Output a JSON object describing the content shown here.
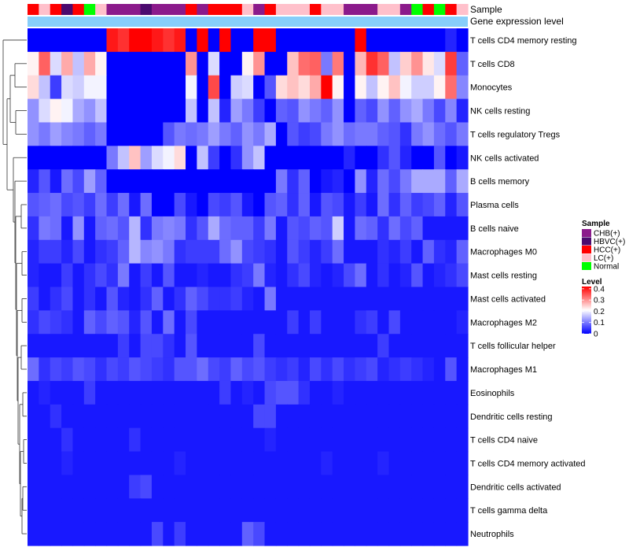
{
  "chart_data": {
    "type": "heatmap",
    "colors": {
      "low": "#0000ff",
      "mid": "#ffffff",
      "high": "#ff0000",
      "expression_bar": "#87cefa",
      "dendrogram": "#333333"
    },
    "annotation_titles": [
      "Sample",
      "Gene expression level"
    ],
    "sample_legend": {
      "title": "Sample",
      "items": [
        {
          "label": "CHB(+)",
          "color": "#8b1a8b"
        },
        {
          "label": "HBVC(+)",
          "color": "#4b0a6e"
        },
        {
          "label": "HCC(+)",
          "color": "#ff0000"
        },
        {
          "label": "LC(+)",
          "color": "#ffc0cb"
        },
        {
          "label": "Normal",
          "color": "#00ff00"
        }
      ]
    },
    "level_legend": {
      "title": "Level",
      "ticks": [
        "0.4",
        "0.3",
        "0.2",
        "0.1",
        "0"
      ],
      "tick_values": [
        0.4,
        0.3,
        0.2,
        0.1,
        0
      ],
      "range": [
        0,
        0.42
      ]
    },
    "sample_types": [
      "HCC(+)",
      "LC(+)",
      "HCC(+)",
      "HBVC(+)",
      "HCC(+)",
      "Normal",
      "LC(+)",
      "CHB(+)",
      "CHB(+)",
      "CHB(+)",
      "HBVC(+)",
      "CHB(+)",
      "CHB(+)",
      "CHB(+)",
      "HCC(+)",
      "CHB(+)",
      "HCC(+)",
      "HCC(+)",
      "HCC(+)",
      "LC(+)",
      "CHB(+)",
      "HCC(+)",
      "LC(+)",
      "LC(+)",
      "LC(+)",
      "HCC(+)",
      "LC(+)",
      "LC(+)",
      "CHB(+)",
      "CHB(+)",
      "CHB(+)",
      "LC(+)",
      "LC(+)",
      "CHB(+)",
      "Normal",
      "HCC(+)",
      "Normal",
      "HCC(+)",
      "LC(+)"
    ],
    "rows": [
      {
        "name": "T cells CD4 memory resting",
        "values": [
          0,
          0,
          0,
          0,
          0,
          0,
          0,
          0.4,
          0.38,
          0.42,
          0.42,
          0.4,
          0.38,
          0.4,
          0,
          0.42,
          0,
          0.42,
          0,
          0,
          0.42,
          0.42,
          0,
          0,
          0,
          0,
          0,
          0,
          0,
          0.42,
          0,
          0,
          0,
          0,
          0,
          0,
          0,
          0.03,
          0
        ]
      },
      {
        "name": "T cells CD8",
        "values": [
          0.22,
          0.34,
          0.18,
          0.28,
          0.16,
          0.28,
          0.22,
          0,
          0,
          0,
          0,
          0,
          0,
          0,
          0.3,
          0,
          0.18,
          0,
          0,
          0.22,
          0.3,
          0,
          0,
          0.26,
          0.33,
          0.34,
          0.1,
          0.32,
          0,
          0.27,
          0.38,
          0.34,
          0.16,
          0.25,
          0.3,
          0.23,
          0.18,
          0.37,
          0.08
        ]
      },
      {
        "name": "Monocytes",
        "values": [
          0.24,
          0.16,
          0.05,
          0.18,
          0.17,
          0.2,
          0.2,
          0,
          0,
          0,
          0,
          0,
          0,
          0,
          0.2,
          0,
          0.36,
          0,
          0.17,
          0.18,
          0,
          0.07,
          0.24,
          0.26,
          0.24,
          0.28,
          0.42,
          0.22,
          0,
          0.22,
          0.16,
          0.22,
          0.26,
          0.2,
          0.17,
          0.17,
          0.22,
          0.33,
          0.11
        ]
      },
      {
        "name": "NK cells resting",
        "values": [
          0.12,
          0.18,
          0.22,
          0.2,
          0.14,
          0.12,
          0.16,
          0,
          0,
          0,
          0,
          0,
          0,
          0,
          0.16,
          0,
          0.16,
          0.03,
          0.13,
          0.1,
          0.05,
          0,
          0.08,
          0.07,
          0.12,
          0.1,
          0.08,
          0.12,
          0,
          0.08,
          0.06,
          0.12,
          0.08,
          0.12,
          0.14,
          0.1,
          0.06,
          0.11,
          0.03
        ]
      },
      {
        "name": "T cells regulatory  Tregs",
        "values": [
          0.12,
          0.1,
          0.13,
          0.11,
          0.1,
          0.08,
          0.1,
          0,
          0,
          0,
          0,
          0,
          0.07,
          0.1,
          0.09,
          0.1,
          0.13,
          0.1,
          0.08,
          0.12,
          0.1,
          0.14,
          0,
          0.07,
          0.05,
          0.06,
          0.1,
          0.12,
          0.09,
          0.1,
          0.1,
          0.08,
          0.07,
          0.04,
          0.1,
          0.12,
          0.09,
          0.07,
          0.1
        ]
      },
      {
        "name": "NK cells activated",
        "values": [
          0,
          0,
          0,
          0,
          0,
          0,
          0,
          0.1,
          0.16,
          0.26,
          0.13,
          0.18,
          0.2,
          0.24,
          0,
          0.16,
          0.05,
          0,
          0.04,
          0.12,
          0.16,
          0,
          0,
          0,
          0,
          0,
          0,
          0,
          0.03,
          0,
          0,
          0.04,
          0.07,
          0.03,
          0,
          0,
          0.07,
          0,
          0.02
        ]
      },
      {
        "name": "B cells memory",
        "values": [
          0.03,
          0.07,
          0.02,
          0.09,
          0.06,
          0.13,
          0.08,
          0,
          0,
          0,
          0,
          0,
          0,
          0,
          0,
          0,
          0,
          0,
          0,
          0,
          0,
          0,
          0.1,
          0.04,
          0.08,
          0,
          0.02,
          0.03,
          0,
          0.12,
          0.03,
          0.09,
          0.06,
          0.1,
          0.14,
          0.14,
          0.14,
          0.08,
          0.14
        ]
      },
      {
        "name": "Plasma cells",
        "values": [
          0.07,
          0.08,
          0.09,
          0.06,
          0.07,
          0.05,
          0.09,
          0.05,
          0.09,
          0.02,
          0.09,
          0,
          0,
          0.06,
          0.02,
          0,
          0.06,
          0.05,
          0.07,
          0.02,
          0,
          0.07,
          0.08,
          0.04,
          0.08,
          0.02,
          0.07,
          0.06,
          0.02,
          0.05,
          0.02,
          0.09,
          0.04,
          0.08,
          0.05,
          0.06,
          0.08,
          0.03,
          0.07
        ]
      },
      {
        "name": "B cells naive",
        "values": [
          0.04,
          0.1,
          0.09,
          0.02,
          0.12,
          0.02,
          0.08,
          0.09,
          0.07,
          0.15,
          0.04,
          0.1,
          0.11,
          0.1,
          0.04,
          0.07,
          0.14,
          0.09,
          0.08,
          0.08,
          0.05,
          0.1,
          0.02,
          0.07,
          0.06,
          0.08,
          0.07,
          0.17,
          0.02,
          0.09,
          0.08,
          0.04,
          0.09,
          0.06,
          0.08,
          0.02,
          0.02,
          0.02,
          0.02
        ]
      },
      {
        "name": "Macrophages M0",
        "values": [
          0.03,
          0.05,
          0.05,
          0.03,
          0.06,
          0.02,
          0.04,
          0.05,
          0.08,
          0.15,
          0.11,
          0.12,
          0.1,
          0.04,
          0.05,
          0.05,
          0.05,
          0.09,
          0.12,
          0.06,
          0.05,
          0.04,
          0.02,
          0.07,
          0.05,
          0.03,
          0.05,
          0.09,
          0.02,
          0.02,
          0.02,
          0.04,
          0.03,
          0.05,
          0.02,
          0.08,
          0.04,
          0.03,
          0.08
        ]
      },
      {
        "name": "Mast cells resting",
        "values": [
          0.03,
          0.02,
          0.02,
          0.05,
          0.02,
          0.04,
          0.06,
          0.04,
          0.1,
          0.02,
          0.05,
          0.02,
          0.07,
          0.02,
          0.02,
          0.03,
          0.02,
          0.02,
          0.04,
          0.05,
          0.1,
          0.03,
          0.02,
          0.04,
          0.06,
          0.03,
          0.02,
          0.03,
          0.06,
          0.09,
          0.02,
          0.04,
          0.02,
          0.03,
          0.07,
          0.02,
          0.03,
          0.04,
          0.06
        ]
      },
      {
        "name": "Mast cells activated",
        "values": [
          0.05,
          0.02,
          0.04,
          0.06,
          0.02,
          0.04,
          0.02,
          0.07,
          0.03,
          0.02,
          0.04,
          0.08,
          0.02,
          0.04,
          0.08,
          0.06,
          0.04,
          0.04,
          0.05,
          0.03,
          0.02,
          0.1,
          0.02,
          0.02,
          0.02,
          0.02,
          0.02,
          0.02,
          0.02,
          0.02,
          0.02,
          0.02,
          0.02,
          0.02,
          0.02,
          0.02,
          0.02,
          0.02,
          0.02
        ]
      },
      {
        "name": "Macrophages M2",
        "values": [
          0.04,
          0.06,
          0.05,
          0.04,
          0.02,
          0.08,
          0.06,
          0.08,
          0.07,
          0.03,
          0.07,
          0.02,
          0.09,
          0.02,
          0.06,
          0.02,
          0.02,
          0.02,
          0.02,
          0.02,
          0.02,
          0.02,
          0.02,
          0.05,
          0.02,
          0.05,
          0.02,
          0.02,
          0.02,
          0.04,
          0.05,
          0.02,
          0.06,
          0.02,
          0.02,
          0.02,
          0.02,
          0.02,
          0.03
        ]
      },
      {
        "name": "T cells follicular helper",
        "values": [
          0.02,
          0.02,
          0.02,
          0.02,
          0.02,
          0.02,
          0.02,
          0.02,
          0.05,
          0.02,
          0.06,
          0.06,
          0.04,
          0.02,
          0.07,
          0.02,
          0.02,
          0.02,
          0.02,
          0.02,
          0.06,
          0.02,
          0.02,
          0.02,
          0.02,
          0.02,
          0.02,
          0.02,
          0.02,
          0.02,
          0.02,
          0.05,
          0.02,
          0.02,
          0.02,
          0.02,
          0.02,
          0.02,
          0.02
        ]
      },
      {
        "name": "Macrophages M1",
        "values": [
          0.09,
          0.04,
          0.06,
          0.05,
          0.07,
          0.06,
          0.04,
          0.06,
          0.05,
          0.07,
          0.06,
          0.05,
          0.04,
          0.07,
          0.07,
          0.09,
          0.06,
          0.05,
          0.08,
          0.06,
          0.07,
          0.05,
          0.04,
          0.05,
          0.03,
          0.06,
          0.04,
          0.06,
          0.04,
          0.05,
          0.06,
          0.03,
          0.04,
          0.05,
          0.04,
          0.03,
          0.02,
          0.07,
          0.02
        ]
      },
      {
        "name": "Eosinophils",
        "values": [
          0.02,
          0.03,
          0.02,
          0.02,
          0.02,
          0.05,
          0.02,
          0.02,
          0.02,
          0.02,
          0.02,
          0.02,
          0.02,
          0.02,
          0.02,
          0.02,
          0.02,
          0.05,
          0.02,
          0.03,
          0.02,
          0.06,
          0.07,
          0.07,
          0.04,
          0.02,
          0.02,
          0.03,
          0.02,
          0.02,
          0.02,
          0.02,
          0.02,
          0.02,
          0.02,
          0.02,
          0.02,
          0.02,
          0.02
        ]
      },
      {
        "name": "Dendritic cells resting",
        "values": [
          0.02,
          0.02,
          0.04,
          0.02,
          0.02,
          0.02,
          0.02,
          0.02,
          0.02,
          0.02,
          0.02,
          0.02,
          0.02,
          0.02,
          0.02,
          0.02,
          0.02,
          0.02,
          0.02,
          0.02,
          0.06,
          0.06,
          0.02,
          0.02,
          0.02,
          0.02,
          0.02,
          0.02,
          0.02,
          0.02,
          0.02,
          0.02,
          0.02,
          0.02,
          0.02,
          0.02,
          0.02,
          0.02,
          0.02
        ]
      },
      {
        "name": "T cells CD4 naive",
        "values": [
          0.02,
          0.02,
          0.02,
          0.04,
          0.02,
          0.02,
          0.02,
          0.02,
          0.02,
          0.04,
          0.02,
          0.02,
          0.02,
          0.02,
          0.02,
          0.02,
          0.02,
          0.02,
          0.02,
          0.02,
          0.02,
          0.03,
          0.02,
          0.02,
          0.02,
          0.02,
          0.02,
          0.02,
          0.02,
          0.02,
          0.02,
          0.02,
          0.02,
          0.02,
          0.02,
          0.02,
          0.02,
          0.02,
          0.02
        ]
      },
      {
        "name": "T cells CD4 memory activated",
        "values": [
          0.02,
          0.02,
          0.02,
          0.03,
          0.02,
          0.02,
          0.02,
          0.02,
          0.02,
          0.02,
          0.02,
          0.02,
          0.02,
          0.03,
          0.02,
          0.02,
          0.02,
          0.02,
          0.02,
          0.02,
          0.02,
          0.02,
          0.02,
          0.02,
          0.02,
          0.02,
          0.03,
          0.02,
          0.02,
          0.02,
          0.02,
          0.03,
          0.02,
          0.02,
          0.02,
          0.02,
          0.02,
          0.02,
          0.02
        ]
      },
      {
        "name": "Dendritic cells activated",
        "values": [
          0.02,
          0.02,
          0.02,
          0.02,
          0.02,
          0.02,
          0.02,
          0.02,
          0.02,
          0.05,
          0.06,
          0.02,
          0.02,
          0.02,
          0.02,
          0.02,
          0.02,
          0.02,
          0.02,
          0.02,
          0.02,
          0.02,
          0.02,
          0.02,
          0.02,
          0.02,
          0.02,
          0.02,
          0.02,
          0.02,
          0.02,
          0.02,
          0.02,
          0.02,
          0.02,
          0.02,
          0.02,
          0.02,
          0.02
        ]
      },
      {
        "name": "T cells gamma delta",
        "values": [
          0.02,
          0.02,
          0.02,
          0.02,
          0.02,
          0.02,
          0.02,
          0.02,
          0.02,
          0.02,
          0.02,
          0.02,
          0.02,
          0.02,
          0.02,
          0.02,
          0.02,
          0.02,
          0.02,
          0.02,
          0.02,
          0.02,
          0.02,
          0.02,
          0.02,
          0.02,
          0.02,
          0.02,
          0.02,
          0.02,
          0.02,
          0.02,
          0.02,
          0.02,
          0.02,
          0.02,
          0.02,
          0.02,
          0.02
        ]
      },
      {
        "name": "Neutrophils",
        "values": [
          0.02,
          0.02,
          0.02,
          0.02,
          0.02,
          0.02,
          0.02,
          0.02,
          0.02,
          0.02,
          0.02,
          0.06,
          0.02,
          0.05,
          0.02,
          0.02,
          0.02,
          0.02,
          0.02,
          0.08,
          0.06,
          0.02,
          0.02,
          0.02,
          0.02,
          0.02,
          0.02,
          0.02,
          0.02,
          0.02,
          0.02,
          0.02,
          0.02,
          0.02,
          0.02,
          0.02,
          0.02,
          0.02,
          0.02
        ]
      }
    ]
  }
}
